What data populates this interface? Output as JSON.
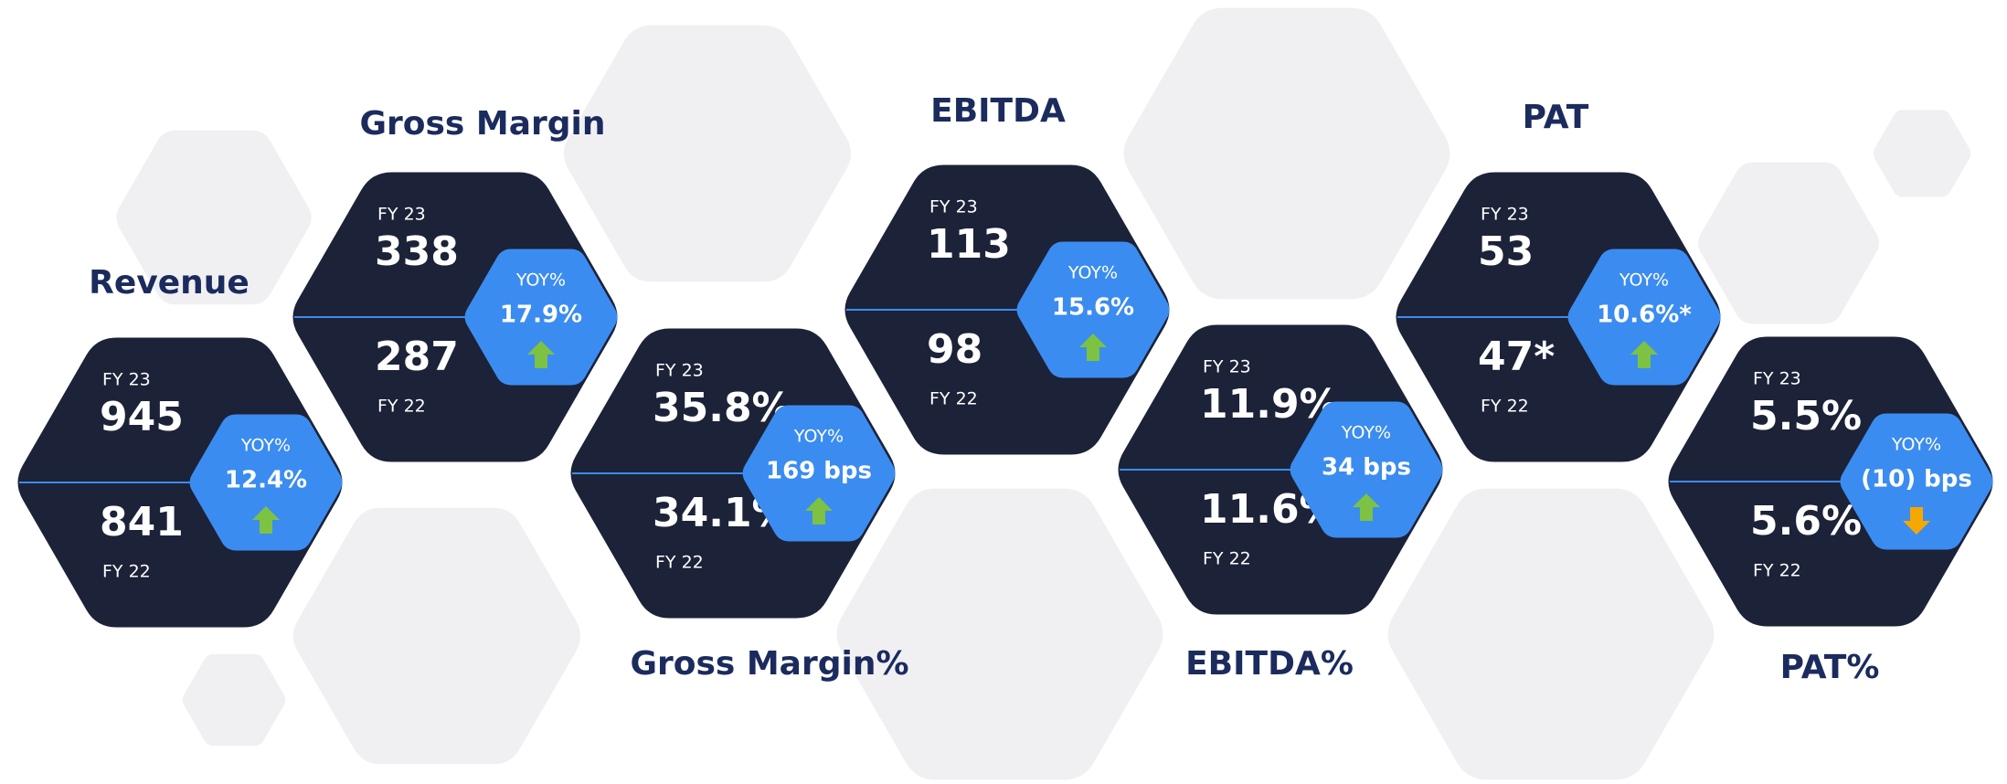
{
  "metrics": [
    {
      "title": "Revenue",
      "current_label": "FY 23",
      "current": "945",
      "previous_label": "FY 22",
      "previous": "841",
      "change_label": "YOY%",
      "change": "12.4%",
      "trend": "up"
    },
    {
      "title": "Gross Margin",
      "current_label": "FY 23",
      "current": "338",
      "previous_label": "FY 22",
      "previous": "287",
      "change_label": "YOY%",
      "change": "17.9%",
      "trend": "up"
    },
    {
      "title": "Gross Margin%",
      "current_label": "FY 23",
      "current": "35.8%",
      "previous_label": "FY 22",
      "previous": "34.1%",
      "change_label": "YOY%",
      "change": "169 bps",
      "trend": "up"
    },
    {
      "title": "EBITDA",
      "current_label": "FY 23",
      "current": "113",
      "previous_label": "FY 22",
      "previous": "98",
      "change_label": "YOY%",
      "change": "15.6%",
      "trend": "up"
    },
    {
      "title": "EBITDA%",
      "current_label": "FY 23",
      "current": "11.9%",
      "previous_label": "FY 22",
      "previous": "11.6%",
      "change_label": "YOY%",
      "change": "34 bps",
      "trend": "up"
    },
    {
      "title": "PAT",
      "current_label": "FY 23",
      "current": "53",
      "previous_label": "FY 22",
      "previous": "47*",
      "change_label": "YOY%",
      "change": "10.6%*",
      "trend": "up"
    },
    {
      "title": "PAT%",
      "current_label": "FY 23",
      "current": "5.5%",
      "previous_label": "FY 22",
      "previous": "5.6%*",
      "change_label": "YOY%",
      "change": "(10) bps",
      "trend": "down"
    }
  ]
}
